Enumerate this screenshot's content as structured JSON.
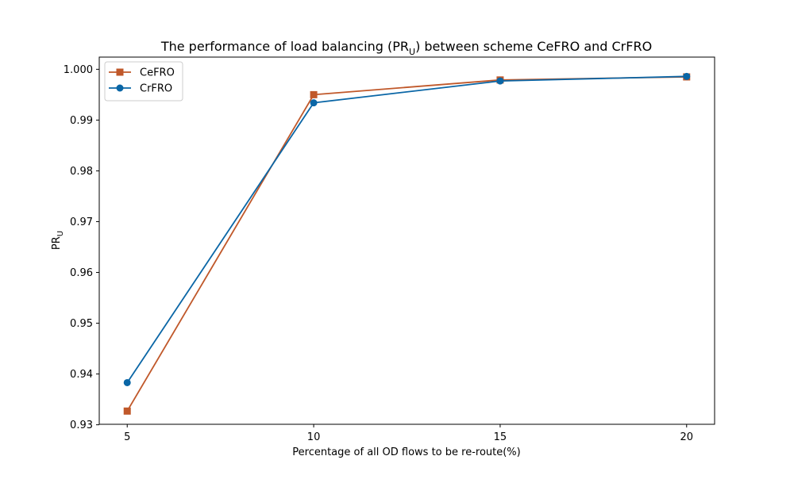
{
  "chart_data": {
    "type": "line",
    "title": {
      "prefix": "The performance of load balancing (PR",
      "subscript": "U",
      "suffix": ") between scheme CeFRO and CrFRO"
    },
    "xlabel": "Percentage of all OD flows to be re-route(%)",
    "ylabel": {
      "main": "PR",
      "subscript": "U"
    },
    "x": [
      5,
      10,
      15,
      20
    ],
    "xlim": [
      4.25,
      20.75
    ],
    "ylim": [
      0.9301,
      1.0024
    ],
    "x_ticks": [
      5,
      10,
      15,
      20
    ],
    "x_tick_labels": [
      "5",
      "10",
      "15",
      "20"
    ],
    "y_ticks": [
      0.93,
      0.94,
      0.95,
      0.96,
      0.97,
      0.98,
      0.99,
      1.0
    ],
    "y_tick_labels": [
      "0.93",
      "0.94",
      "0.95",
      "0.96",
      "0.97",
      "0.98",
      "0.99",
      "1.000"
    ],
    "grid": false,
    "legend_position": "top-left",
    "series": [
      {
        "name": "CeFRO",
        "values": [
          0.9327,
          0.995,
          0.9979,
          0.9985
        ],
        "color": "#c0582a",
        "marker": "square"
      },
      {
        "name": "CrFRO",
        "values": [
          0.9383,
          0.9934,
          0.9977,
          0.9986
        ],
        "color": "#0a66a6",
        "marker": "circle"
      }
    ]
  }
}
